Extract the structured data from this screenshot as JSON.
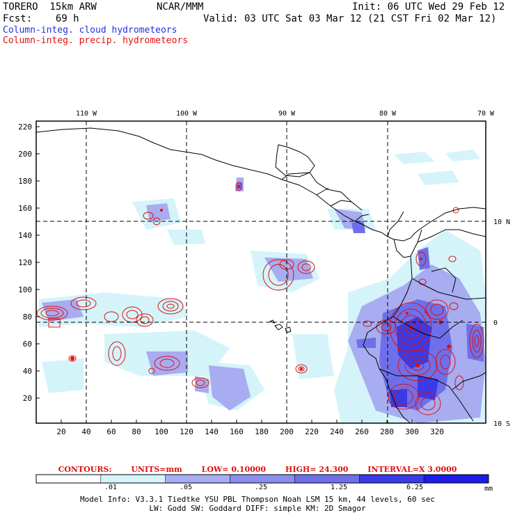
{
  "header": {
    "model": "TORERO  15km ARW",
    "org": "NCAR/MMM",
    "init": "Init: 06 UTC Wed 29 Feb 12",
    "fcst": "Fcst:    69 h",
    "valid": "Valid: 03 UTC Sat 03 Mar 12 (21 CST Fri 02 Mar 12)",
    "field1": "Column-integ. cloud hydrometeors",
    "field2": "Column-integ. precip. hydrometeors"
  },
  "map": {
    "top_labels": [
      "110 W",
      "100 W",
      "90 W",
      "80 W",
      "70 W"
    ],
    "right_labels": [
      "10 N",
      "0",
      "10 S"
    ],
    "y_ticks": [
      "220",
      "200",
      "180",
      "160",
      "140",
      "120",
      "100",
      "80",
      "60",
      "40",
      "20"
    ],
    "x_ticks": [
      "20",
      "40",
      "60",
      "80",
      "100",
      "120",
      "140",
      "160",
      "180",
      "200",
      "220",
      "240",
      "260",
      "280",
      "300",
      "320"
    ],
    "colors": {
      "cloud_light": "#d4f4fa",
      "cloud_mid": "#a8acf0",
      "cloud_dark": "#6e70ea",
      "cloud_deep": "#3a3ae6",
      "precip_contour": "#e01010",
      "coast": "#000000"
    }
  },
  "contours": {
    "label": "CONTOURS:",
    "units": "UNITS=mm",
    "low": "LOW= 0.10000",
    "high": "HIGH=  24.300",
    "interval": "INTERVAL=X  3.0000"
  },
  "colorbar": {
    "labels": [
      ".01",
      ".05",
      ".25",
      "1.25",
      "6.25"
    ],
    "unit": "mm",
    "colors": [
      "#ffffff",
      "#d4f4fa",
      "#a8acf0",
      "#8a8cee",
      "#6e70ea",
      "#3a3ae6",
      "#1c1ce8"
    ]
  },
  "model_info": {
    "line1": "Model Info: V3.3.1   Tiedtke YSU PBL  Thompson    Noah LSM  15 km,   44 levels,    60 sec",
    "line2": "LW: Godd SW: Goddard DIFF: simple KM: 2D Smagor"
  }
}
